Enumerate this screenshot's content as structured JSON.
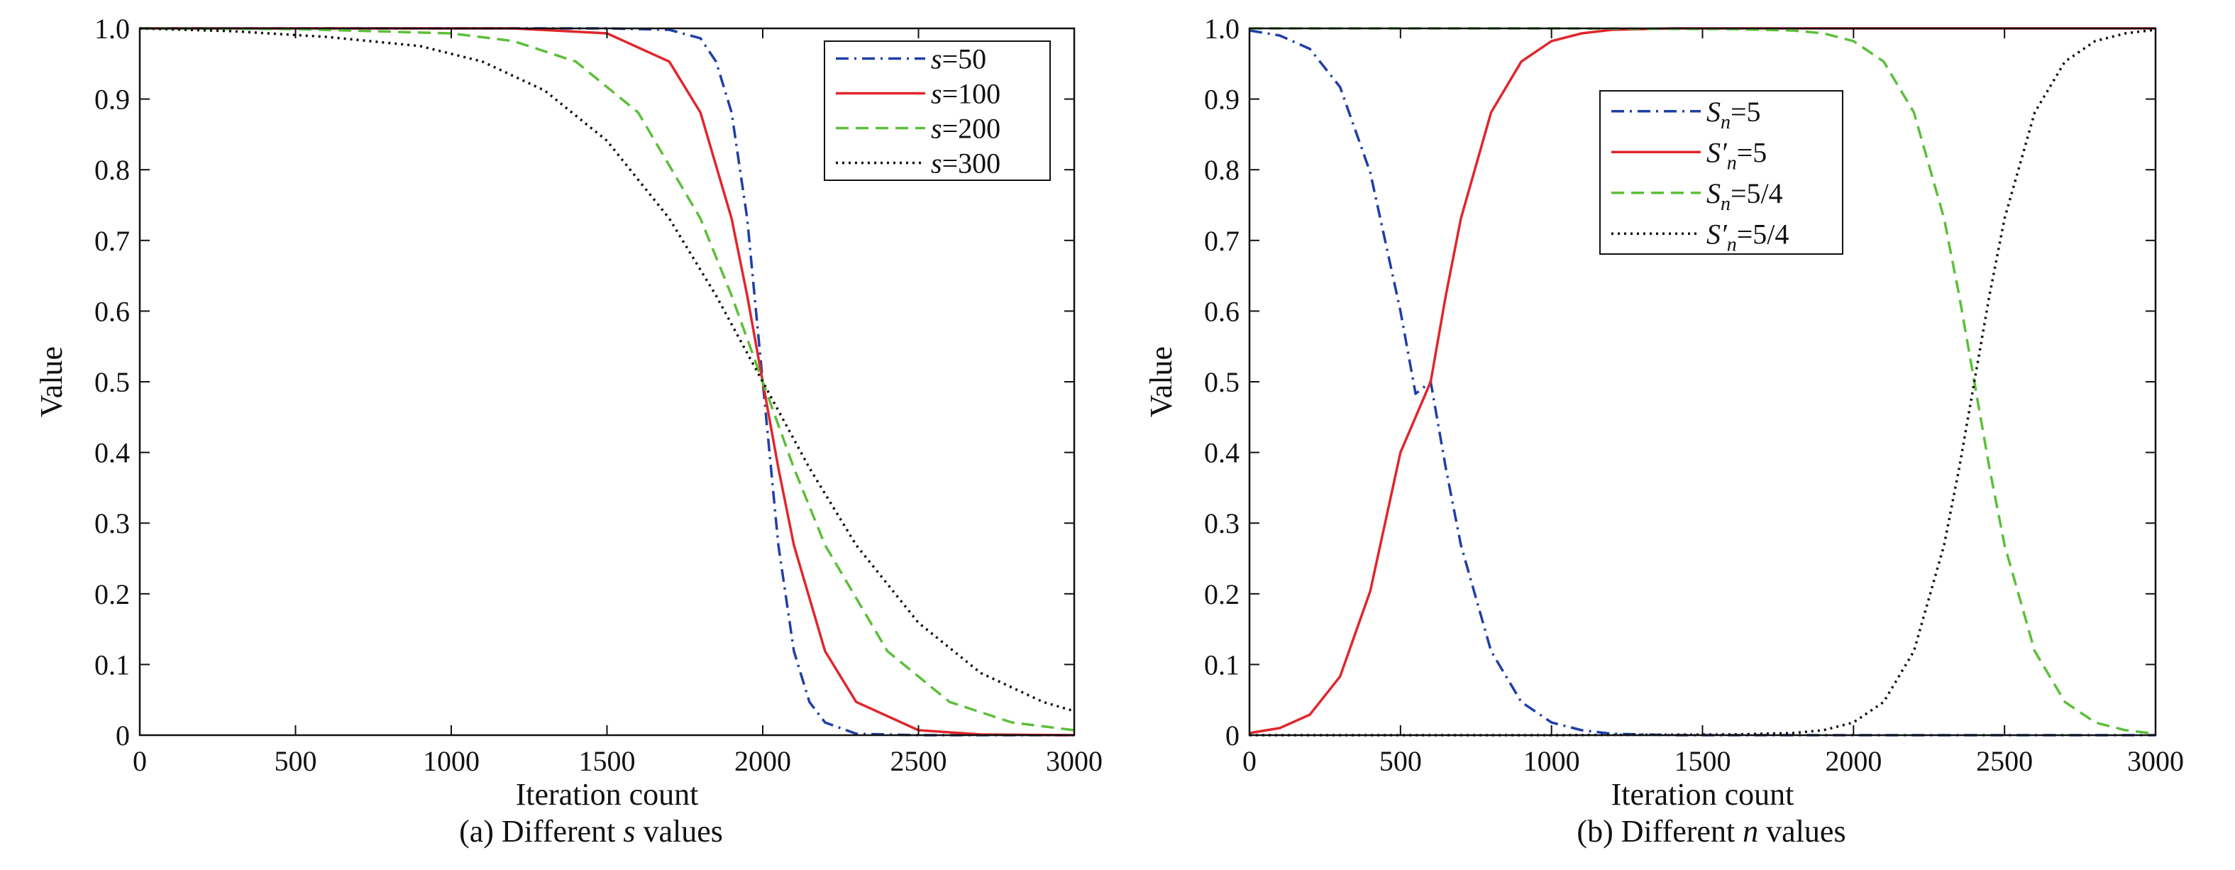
{
  "chart_data": [
    {
      "id": "a",
      "type": "line",
      "caption": "(a) Different s values",
      "caption_parts": {
        "prefix": "(a) Different ",
        "var": "s",
        "suffix": " values"
      },
      "xlabel": "Iteration count",
      "ylabel": "Value",
      "xlim": [
        0,
        3000
      ],
      "ylim": [
        0,
        1
      ],
      "xticks": [
        0,
        500,
        1000,
        1500,
        2000,
        2500,
        3000
      ],
      "yticks": [
        0,
        0.1,
        0.2,
        0.3,
        0.4,
        0.5,
        0.6,
        0.7,
        0.8,
        0.9,
        1.0
      ],
      "ytick_labels": [
        "0",
        "0.1",
        "0.2",
        "0.3",
        "0.4",
        "0.5",
        "0.6",
        "0.7",
        "0.8",
        "0.9",
        "1.0"
      ],
      "grid": false,
      "legend_position": "top-right",
      "series": [
        {
          "name": "s=50",
          "label_var": "s",
          "label_rest": "=50",
          "color": "#1f3fa6",
          "dash": "dashdot",
          "x": [
            0,
            1500,
            1700,
            1800,
            1850,
            1900,
            1950,
            2000,
            2050,
            2100,
            2150,
            2200,
            2300,
            2500,
            3000
          ],
          "y": [
            1.0,
            1.0,
            0.998,
            0.986,
            0.953,
            0.881,
            0.731,
            0.5,
            0.269,
            0.119,
            0.047,
            0.018,
            0.002,
            0.0,
            0.0
          ]
        },
        {
          "name": "s=100",
          "label_var": "s",
          "label_rest": "=100",
          "color": "#e0262b",
          "dash": "solid",
          "x": [
            0,
            1200,
            1500,
            1700,
            1800,
            1900,
            1950,
            2000,
            2050,
            2100,
            2200,
            2300,
            2500,
            2700,
            3000
          ],
          "y": [
            1.0,
            1.0,
            0.993,
            0.953,
            0.881,
            0.731,
            0.622,
            0.5,
            0.378,
            0.269,
            0.119,
            0.047,
            0.007,
            0.001,
            0.0
          ]
        },
        {
          "name": "s=200",
          "label_var": "s",
          "label_rest": "=200",
          "color": "#5cbf3a",
          "dash": "dashed",
          "x": [
            0,
            500,
            1000,
            1200,
            1400,
            1600,
            1800,
            1900,
            2000,
            2100,
            2200,
            2400,
            2600,
            2800,
            3000
          ],
          "y": [
            1.0,
            0.999,
            0.993,
            0.982,
            0.953,
            0.881,
            0.731,
            0.622,
            0.5,
            0.378,
            0.269,
            0.119,
            0.047,
            0.018,
            0.007
          ]
        },
        {
          "name": "s=300",
          "label_var": "s",
          "label_rest": "=300",
          "color": "#111111",
          "dash": "dotted",
          "x": [
            0,
            300,
            600,
            900,
            1100,
            1300,
            1500,
            1700,
            1850,
            2000,
            2150,
            2300,
            2500,
            2700,
            2900,
            3000
          ],
          "y": [
            1.0,
            0.996,
            0.988,
            0.975,
            0.953,
            0.912,
            0.841,
            0.731,
            0.622,
            0.5,
            0.378,
            0.269,
            0.159,
            0.088,
            0.047,
            0.034
          ]
        }
      ]
    },
    {
      "id": "b",
      "type": "line",
      "caption": "(b) Different n values",
      "caption_parts": {
        "prefix": "(b) Different ",
        "var": "n",
        "suffix": " values"
      },
      "xlabel": "Iteration count",
      "ylabel": "Value",
      "xlim": [
        0,
        3000
      ],
      "ylim": [
        0,
        1
      ],
      "xticks": [
        0,
        500,
        1000,
        1500,
        2000,
        2500,
        3000
      ],
      "yticks": [
        0,
        0.1,
        0.2,
        0.3,
        0.4,
        0.5,
        0.6,
        0.7,
        0.8,
        0.9,
        1.0
      ],
      "ytick_labels": [
        "0",
        "0.1",
        "0.2",
        "0.3",
        "0.4",
        "0.5",
        "0.6",
        "0.7",
        "0.8",
        "0.9",
        "1.0"
      ],
      "grid": false,
      "legend_position": "top-center",
      "series": [
        {
          "name": "S_n=5",
          "label_var": "S",
          "label_sub": "n",
          "label_prime": false,
          "label_rest": "=5",
          "color": "#1f3fa6",
          "dash": "dashdot",
          "x": [
            0,
            100,
            200,
            300,
            400,
            500,
            550,
            600,
            650,
            700,
            800,
            900,
            1000,
            1100,
            1200,
            1400,
            1800,
            3000
          ],
          "y": [
            0.997,
            0.99,
            0.971,
            0.917,
            0.796,
            0.6,
            0.483,
            0.5,
            0.378,
            0.269,
            0.119,
            0.047,
            0.018,
            0.007,
            0.002,
            0.0,
            0.0,
            0.0
          ]
        },
        {
          "name": "S'_n=5",
          "label_var": "S",
          "label_sub": "n",
          "label_prime": true,
          "label_rest": "=5",
          "color": "#e0262b",
          "dash": "solid",
          "x": [
            0,
            100,
            200,
            300,
            400,
            500,
            550,
            600,
            650,
            700,
            800,
            900,
            1000,
            1100,
            1200,
            1400,
            1800,
            3000
          ],
          "y": [
            0.003,
            0.01,
            0.029,
            0.083,
            0.204,
            0.4,
            0.45,
            0.5,
            0.622,
            0.731,
            0.881,
            0.953,
            0.982,
            0.993,
            0.998,
            1.0,
            1.0,
            1.0
          ]
        },
        {
          "name": "S_n=5/4",
          "label_var": "S",
          "label_sub": "n",
          "label_prime": false,
          "label_rest": "=5/4",
          "color": "#5cbf3a",
          "dash": "dashed",
          "x": [
            0,
            1000,
            1600,
            1800,
            1900,
            2000,
            2100,
            2200,
            2300,
            2350,
            2400,
            2450,
            2500,
            2600,
            2700,
            2800,
            2900,
            3000
          ],
          "y": [
            1.0,
            1.0,
            0.999,
            0.997,
            0.993,
            0.982,
            0.953,
            0.881,
            0.731,
            0.622,
            0.5,
            0.378,
            0.269,
            0.119,
            0.047,
            0.018,
            0.007,
            0.002
          ]
        },
        {
          "name": "S'_n=5/4",
          "label_var": "S",
          "label_sub": "n",
          "label_prime": true,
          "label_rest": "=5/4",
          "color": "#111111",
          "dash": "dotted",
          "x": [
            0,
            1000,
            1600,
            1800,
            1900,
            2000,
            2100,
            2200,
            2300,
            2350,
            2400,
            2450,
            2500,
            2600,
            2700,
            2800,
            2900,
            3000
          ],
          "y": [
            0.0,
            0.0,
            0.001,
            0.003,
            0.007,
            0.018,
            0.047,
            0.119,
            0.269,
            0.378,
            0.5,
            0.622,
            0.731,
            0.881,
            0.953,
            0.982,
            0.993,
            0.998
          ]
        }
      ]
    }
  ]
}
